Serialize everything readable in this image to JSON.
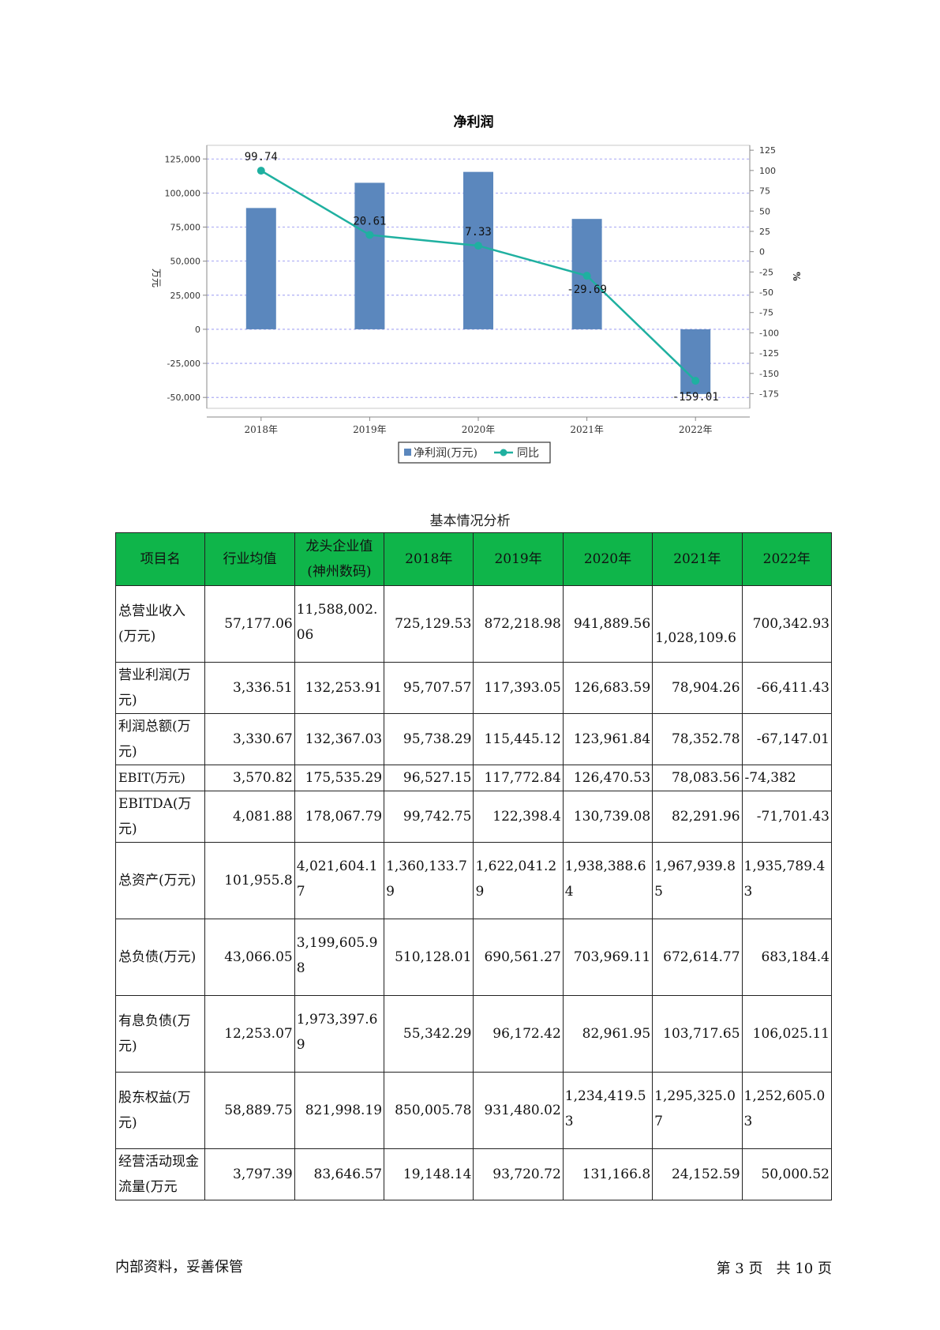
{
  "chart_data": {
    "type": "bar",
    "title": "净利润",
    "categories": [
      "2018年",
      "2019年",
      "2020年",
      "2021年",
      "2022年"
    ],
    "series": [
      {
        "name": "净利润(万元)",
        "type": "bar",
        "axis": "left",
        "values": [
          89000,
          107500,
          115500,
          81000,
          -47500
        ],
        "color": "#5b87bd"
      },
      {
        "name": "同比",
        "type": "line",
        "axis": "right",
        "values": [
          99.74,
          20.61,
          7.33,
          -29.69,
          -159.01
        ],
        "color": "#1fb0a0"
      }
    ],
    "data_labels": [
      "99.74",
      "20.61",
      "7.33",
      "-29.69",
      "-159.01"
    ],
    "ylabel": "万元",
    "ylabel_right": "%",
    "ylim": [
      -58000,
      135000
    ],
    "ylim_right": [
      -193,
      131
    ],
    "yticks": [
      "125,000",
      "100,000",
      "75,000",
      "50,000",
      "25,000",
      "0",
      "-25,000",
      "-50,000"
    ],
    "yticks_values": [
      125000,
      100000,
      75000,
      50000,
      25000,
      0,
      -25000,
      -50000
    ],
    "yticks_right": [
      "125",
      "100",
      "75",
      "50",
      "25",
      "0",
      "-25",
      "-50",
      "-75",
      "-100",
      "-125",
      "-150",
      "-175"
    ],
    "yticks_right_values": [
      125,
      100,
      75,
      50,
      25,
      0,
      -25,
      -50,
      -75,
      -100,
      -125,
      -150,
      -175
    ],
    "grid": true,
    "legend": "bottom"
  },
  "table": {
    "caption": "基本情况分析",
    "headers": [
      "项目名",
      "行业均值",
      "龙头企业值(神州数码)",
      "2018年",
      "2019年",
      "2020年",
      "2021年",
      "2022年"
    ],
    "rows": [
      [
        "总营业收入(万元)",
        "57,177.06",
        "11,588,002.06",
        "725,129.53",
        "872,218.98",
        "941,889.56",
        "1,028,109.6",
        "700,342.93"
      ],
      [
        "营业利润(万元)",
        "3,336.51",
        "132,253.91",
        "95,707.57",
        "117,393.05",
        "126,683.59",
        "78,904.26",
        "-66,411.43"
      ],
      [
        "利润总额(万元)",
        "3,330.67",
        "132,367.03",
        "95,738.29",
        "115,445.12",
        "123,961.84",
        "78,352.78",
        "-67,147.01"
      ],
      [
        "EBIT(万元)",
        "3,570.82",
        "175,535.29",
        "96,527.15",
        "117,772.84",
        "126,470.53",
        "78,083.56",
        "-74,382"
      ],
      [
        "EBITDA(万元)",
        "4,081.88",
        "178,067.79",
        "99,742.75",
        "122,398.4",
        "130,739.08",
        "82,291.96",
        "-71,701.43"
      ],
      [
        "总资产(万元)",
        "101,955.8",
        "4,021,604.17",
        "1,360,133.79",
        "1,622,041.29",
        "1,938,388.64",
        "1,967,939.85",
        "1,935,789.43"
      ],
      [
        "总负债(万元)",
        "43,066.05",
        "3,199,605.98",
        "510,128.01",
        "690,561.27",
        "703,969.11",
        "672,614.77",
        "683,184.4"
      ],
      [
        "有息负债(万元)",
        "12,253.07",
        "1,973,397.69",
        "55,342.29",
        "96,172.42",
        "82,961.95",
        "103,717.65",
        "106,025.11"
      ],
      [
        "股东权益(万元)",
        "58,889.75",
        "821,998.19",
        "850,005.78",
        "931,480.02",
        "1,234,419.53",
        "1,295,325.07",
        "1,252,605.03"
      ],
      [
        "经营活动现金流量(万元",
        "3,797.39",
        "83,646.57",
        "19,148.14",
        "93,720.72",
        "131,166.8",
        "24,152.59",
        "50,000.52"
      ]
    ]
  },
  "footer": {
    "left": "内部资料，妥善保管",
    "right": "第 3 页   共 10 页"
  }
}
